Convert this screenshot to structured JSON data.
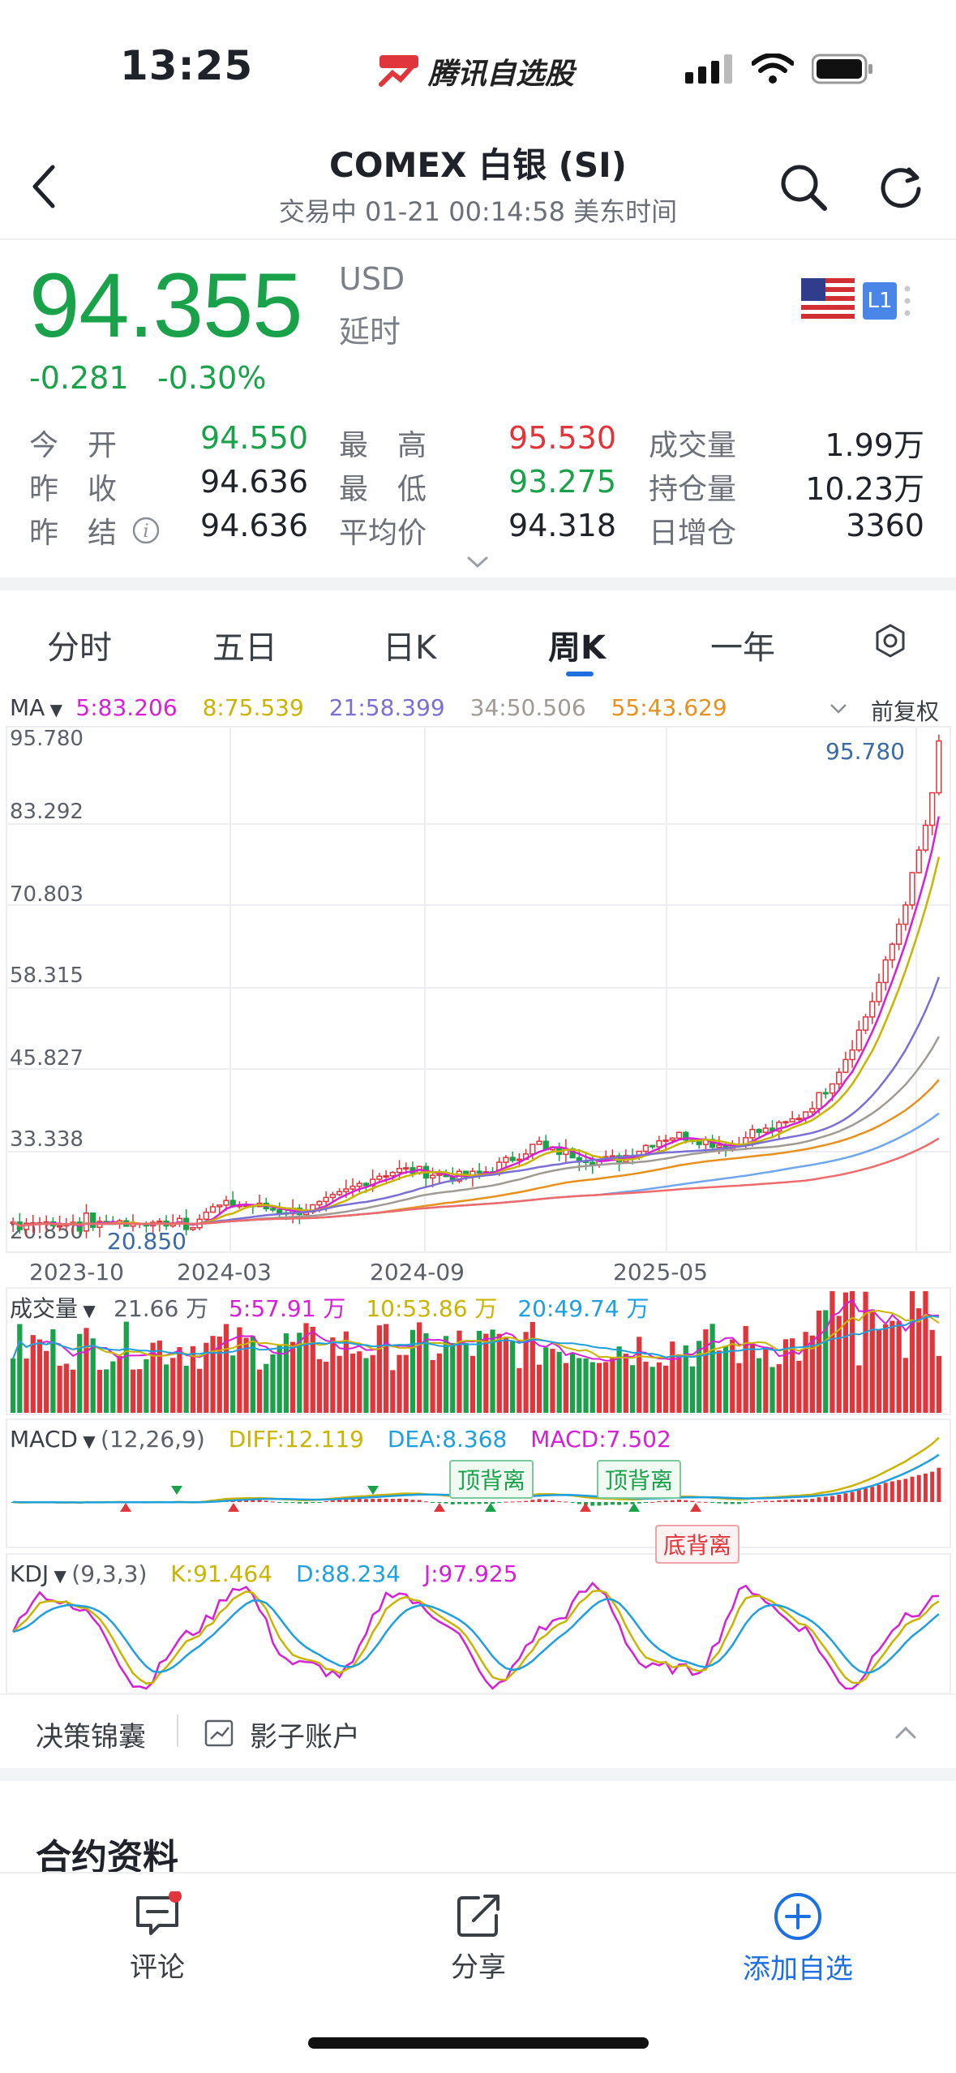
{
  "status": {
    "time": "13:25",
    "app_name": "腾讯自选股"
  },
  "header": {
    "title": "COMEX 白银 (SI)",
    "subtitle": "交易中  01-21 00:14:58 美东时间"
  },
  "quote": {
    "price": "94.355",
    "currency": "USD",
    "delay": "延时",
    "change": "-0.281",
    "change_pct": "-0.30%",
    "level_badge": "L1",
    "rows": [
      [
        {
          "label": "今　开",
          "value": "94.550",
          "color": "green"
        },
        {
          "label": "最　高",
          "value": "95.530",
          "color": "red"
        },
        {
          "label": "成交量",
          "value": "1.99万",
          "color": "black"
        }
      ],
      [
        {
          "label": "昨　收",
          "value": "94.636",
          "color": "black"
        },
        {
          "label": "最　低",
          "value": "93.275",
          "color": "green"
        },
        {
          "label": "持仓量",
          "value": "10.23万",
          "color": "black"
        }
      ],
      [
        {
          "label": "昨　结",
          "value": "94.636",
          "color": "black"
        },
        {
          "label": "平均价",
          "value": "94.318",
          "color": "black"
        },
        {
          "label": "日增仓",
          "value": "3360",
          "color": "black"
        }
      ]
    ]
  },
  "tabs": [
    "分时",
    "五日",
    "日K",
    "周K",
    "一年"
  ],
  "active_tab": "周K",
  "ma_legend": {
    "label": "MA",
    "items": [
      {
        "text": "5:83.206",
        "color": "#d61fd6"
      },
      {
        "text": "8:75.539",
        "color": "#c9b400"
      },
      {
        "text": "21:58.399",
        "color": "#7b6fd6"
      },
      {
        "text": "34:50.506",
        "color": "#a09a94"
      },
      {
        "text": "55:43.629",
        "color": "#e8901e"
      }
    ],
    "adjust": "前复权"
  },
  "price_axis": [
    "95.780",
    "83.292",
    "70.803",
    "58.315",
    "45.827",
    "33.338",
    "20.850"
  ],
  "max_label": "95.780",
  "min_label": "20.850",
  "time_axis": [
    "2023-10",
    "2024-03",
    "2024-09",
    "2025-05"
  ],
  "volume_legend": {
    "label": "成交量",
    "items": [
      {
        "text": "21.66 万",
        "color": "#5b6068"
      },
      {
        "text": "5:57.91 万",
        "color": "#d61fd6"
      },
      {
        "text": "10:53.86 万",
        "color": "#c9b400"
      },
      {
        "text": "20:49.74 万",
        "color": "#1ea0e0"
      }
    ]
  },
  "macd_legend": {
    "label": "MACD",
    "params": "(12,26,9)",
    "items": [
      {
        "text": "DIFF:12.119",
        "color": "#c9b400"
      },
      {
        "text": "DEA:8.368",
        "color": "#1ea0e0"
      },
      {
        "text": "MACD:7.502",
        "color": "#d61fd6"
      }
    ],
    "signals": [
      "顶背离",
      "顶背离",
      "底背离"
    ]
  },
  "kdj_legend": {
    "label": "KDJ",
    "params": "(9,3,3)",
    "items": [
      {
        "text": "K:91.464",
        "color": "#c9b400"
      },
      {
        "text": "D:88.234",
        "color": "#1ea0e0"
      },
      {
        "text": "J:97.925",
        "color": "#d61fd6"
      }
    ]
  },
  "decision": {
    "item1": "决策锦囊",
    "item2": "影子账户"
  },
  "section_title": "合约资料",
  "bottom_bar": {
    "comment": "评论",
    "share": "分享",
    "add": "添加自选"
  },
  "colors": {
    "up": "#e0353a",
    "down": "#19a24a",
    "accent": "#1e6fe0"
  }
}
